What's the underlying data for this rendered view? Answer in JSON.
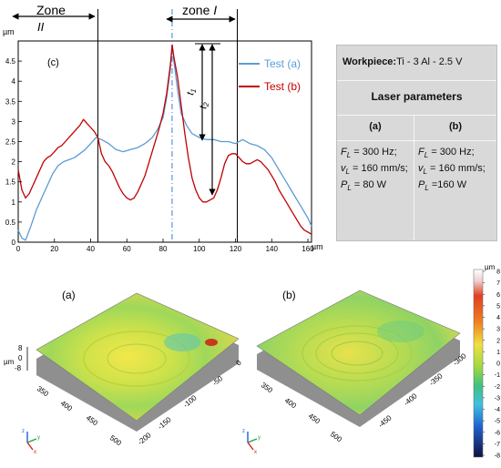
{
  "profile": {
    "panel_label": "(c)",
    "y_unit": "µm",
    "x_unit": "µm",
    "zone_left": {
      "line1": "Zone",
      "line2": "II"
    },
    "zone_right": {
      "word": "zone",
      "numeral": "I"
    },
    "t1_label": "t",
    "t1_sub": "1",
    "t2_label": "t",
    "t2_sub": "2",
    "legend": [
      {
        "name": "Test (a)",
        "color": "#5b9bd5"
      },
      {
        "name": "Test (b)",
        "color": "#c00000"
      }
    ]
  },
  "chart_data": {
    "type": "line",
    "xlim": [
      0,
      162
    ],
    "ylim": [
      0,
      5.0
    ],
    "x_ticks": [
      "0",
      "20",
      "40",
      "60",
      "80",
      "100",
      "120",
      "140",
      "160"
    ],
    "y_ticks": [
      "0",
      "0.5",
      "1",
      "1.5",
      "2",
      "2.5",
      "3",
      "3.5",
      "4",
      "4.5"
    ],
    "zone_lines_x": [
      44,
      85,
      121
    ],
    "series": [
      {
        "name": "Test (a)",
        "color": "#5b9bd5",
        "x": [
          0,
          2,
          4,
          7,
          10,
          13,
          16,
          19,
          22,
          25,
          28,
          31,
          34,
          37,
          40,
          43,
          46,
          50,
          54,
          58,
          62,
          66,
          70,
          74,
          77,
          80,
          82,
          84,
          85,
          86,
          88,
          90,
          93,
          96,
          100,
          104,
          108,
          112,
          116,
          120,
          124,
          128,
          132,
          136,
          140,
          144,
          148,
          152,
          156,
          160,
          162
        ],
        "y": [
          0.3,
          0.1,
          0.05,
          0.4,
          0.8,
          1.1,
          1.4,
          1.7,
          1.9,
          2.0,
          2.05,
          2.1,
          2.2,
          2.3,
          2.45,
          2.6,
          2.55,
          2.45,
          2.3,
          2.25,
          2.3,
          2.35,
          2.45,
          2.6,
          2.8,
          3.1,
          3.6,
          4.3,
          4.9,
          4.5,
          3.8,
          3.2,
          2.9,
          2.7,
          2.6,
          2.55,
          2.55,
          2.5,
          2.5,
          2.45,
          2.55,
          2.45,
          2.4,
          2.3,
          2.1,
          1.8,
          1.5,
          1.2,
          0.9,
          0.6,
          0.4
        ]
      },
      {
        "name": "Test (b)",
        "color": "#c00000",
        "x": [
          0,
          2,
          4,
          6,
          8,
          10,
          12,
          14,
          16,
          18,
          20,
          22,
          24,
          26,
          28,
          30,
          32,
          34,
          36,
          38,
          40,
          42,
          44,
          46,
          48,
          50,
          52,
          54,
          56,
          58,
          60,
          62,
          64,
          66,
          68,
          70,
          72,
          74,
          76,
          78,
          80,
          82,
          84,
          85,
          86,
          88,
          90,
          92,
          94,
          96,
          98,
          100,
          102,
          104,
          106,
          108,
          110,
          112,
          114,
          116,
          118,
          120,
          122,
          124,
          126,
          128,
          130,
          132,
          134,
          136,
          138,
          140,
          142,
          144,
          146,
          148,
          150,
          152,
          154,
          156,
          158,
          160,
          162
        ],
        "y": [
          1.8,
          1.3,
          1.1,
          1.2,
          1.4,
          1.6,
          1.8,
          2.0,
          2.1,
          2.15,
          2.25,
          2.35,
          2.4,
          2.5,
          2.6,
          2.7,
          2.8,
          2.9,
          3.05,
          2.95,
          2.85,
          2.75,
          2.6,
          2.2,
          2.0,
          1.9,
          1.75,
          1.55,
          1.35,
          1.2,
          1.1,
          1.05,
          1.1,
          1.25,
          1.45,
          1.65,
          1.95,
          2.25,
          2.55,
          2.85,
          3.2,
          3.7,
          4.4,
          4.9,
          4.6,
          4.1,
          3.4,
          2.7,
          2.1,
          1.6,
          1.3,
          1.1,
          1.0,
          1.0,
          1.05,
          1.1,
          1.3,
          1.6,
          1.95,
          2.15,
          2.2,
          2.2,
          2.1,
          2.0,
          1.95,
          1.95,
          2.0,
          2.05,
          2.0,
          1.9,
          1.8,
          1.65,
          1.5,
          1.3,
          1.15,
          1.0,
          0.85,
          0.7,
          0.55,
          0.4,
          0.3,
          0.25,
          0.2
        ]
      }
    ]
  },
  "table": {
    "workpiece_label": "Workpiece:",
    "workpiece_value": "Ti - 3 Al - 2.5 V",
    "laser_header": "Laser parameters",
    "col_a": "(a)",
    "col_b": "(b)",
    "a_rows": [
      {
        "sym": "F",
        "sub": "L",
        "val": "= 300 Hz;"
      },
      {
        "sym": "v",
        "sub": "L",
        "val": "= 160 mm/s;"
      },
      {
        "sym": "P",
        "sub": "L",
        "val": "= 80 W"
      }
    ],
    "b_rows": [
      {
        "sym": "F",
        "sub": "L",
        "val": "= 300 Hz;"
      },
      {
        "sym": "v",
        "sub": "L",
        "val": "= 160 mm/s;"
      },
      {
        "sym": "P",
        "sub": "L",
        "val": "=160  W"
      }
    ]
  },
  "surfaces": {
    "label_a": "(a)",
    "label_b": "(b)",
    "z_unit": "µm",
    "z_ticks_a": [
      "8",
      "0",
      "-8"
    ],
    "x_ticks_a": [
      "350",
      "400",
      "450",
      "500"
    ],
    "y_ticks_a": [
      "0",
      "-50",
      "-100",
      "-150",
      "-200"
    ],
    "x_ticks_b": [
      "350",
      "400",
      "450",
      "500"
    ],
    "y_ticks_b": [
      "-300",
      "-350",
      "-400",
      "-450"
    ],
    "axis_x": "x",
    "axis_y": "y",
    "axis_z": "z"
  },
  "colorbar": {
    "unit": "µm",
    "ticks": [
      "8",
      "7",
      "6",
      "5",
      "4",
      "3",
      "2",
      "1",
      "0",
      "-1",
      "-2",
      "-3",
      "-4",
      "-5",
      "-6",
      "-7",
      "-8"
    ]
  }
}
